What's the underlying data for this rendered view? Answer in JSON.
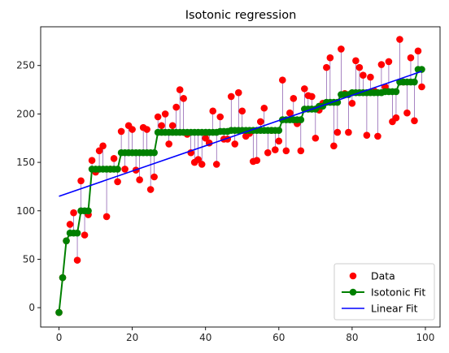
{
  "chart_data": {
    "type": "scatter",
    "title": "Isotonic regression",
    "xlabel": "",
    "ylabel": "",
    "xlim": [
      -5,
      104
    ],
    "ylim": [
      -20,
      290
    ],
    "xticks": [
      0,
      20,
      40,
      60,
      80,
      100
    ],
    "yticks": [
      0,
      50,
      100,
      150,
      200,
      250
    ],
    "grid": false,
    "legend_position": "lower-right",
    "colors": {
      "data": "#ff0000",
      "isotonic": "#008000",
      "linear": "#0000ff",
      "residual": "#4b0082"
    },
    "series": [
      {
        "name": "Data",
        "style": "markers",
        "x": [
          0,
          1,
          2,
          3,
          4,
          5,
          6,
          7,
          8,
          9,
          10,
          11,
          12,
          13,
          14,
          15,
          16,
          17,
          18,
          19,
          20,
          21,
          22,
          23,
          24,
          25,
          26,
          27,
          28,
          29,
          30,
          31,
          32,
          33,
          34,
          35,
          36,
          37,
          38,
          39,
          40,
          41,
          42,
          43,
          44,
          45,
          46,
          47,
          48,
          49,
          50,
          51,
          52,
          53,
          54,
          55,
          56,
          57,
          58,
          59,
          60,
          61,
          62,
          63,
          64,
          65,
          66,
          67,
          68,
          69,
          70,
          71,
          72,
          73,
          74,
          75,
          76,
          77,
          78,
          79,
          80,
          81,
          82,
          83,
          84,
          85,
          86,
          87,
          88,
          89,
          90,
          91,
          92,
          93,
          94,
          95,
          96,
          97,
          98,
          99
        ],
        "y": [
          -5,
          31,
          69,
          86,
          98,
          49,
          131,
          75,
          96,
          152,
          140,
          162,
          167,
          94,
          143,
          154,
          130,
          182,
          143,
          188,
          184,
          142,
          132,
          186,
          184,
          122,
          135,
          197,
          188,
          200,
          169,
          188,
          207,
          225,
          216,
          179,
          160,
          150,
          153,
          148,
          175,
          170,
          203,
          148,
          197,
          174,
          174,
          218,
          169,
          222,
          203,
          177,
          180,
          151,
          152,
          192,
          206,
          160,
          183,
          163,
          172,
          235,
          162,
          201,
          216,
          190,
          162,
          226,
          219,
          218,
          175,
          204,
          211,
          248,
          258,
          167,
          181,
          267,
          221,
          181,
          211,
          255,
          248,
          240,
          178,
          238,
          224,
          177,
          251,
          228,
          254,
          192,
          196,
          277,
          233,
          201,
          258,
          193,
          265,
          228
        ]
      },
      {
        "name": "Isotonic Fit",
        "style": "line-markers",
        "x": [
          0,
          1,
          2,
          3,
          4,
          5,
          6,
          7,
          8,
          9,
          10,
          11,
          12,
          13,
          14,
          15,
          16,
          17,
          18,
          19,
          20,
          21,
          22,
          23,
          24,
          25,
          26,
          27,
          28,
          29,
          30,
          31,
          32,
          33,
          34,
          35,
          36,
          37,
          38,
          39,
          40,
          41,
          42,
          43,
          44,
          45,
          46,
          47,
          48,
          49,
          50,
          51,
          52,
          53,
          54,
          55,
          56,
          57,
          58,
          59,
          60,
          61,
          62,
          63,
          64,
          65,
          66,
          67,
          68,
          69,
          70,
          71,
          72,
          73,
          74,
          75,
          76,
          77,
          78,
          79,
          80,
          81,
          82,
          83,
          84,
          85,
          86,
          87,
          88,
          89,
          90,
          91,
          92,
          93,
          94,
          95,
          96,
          97,
          98,
          99
        ],
        "y": [
          -5,
          31,
          69,
          77,
          77,
          77,
          100,
          100,
          100,
          143,
          143,
          143,
          143,
          143,
          143,
          143,
          143,
          160,
          160,
          160,
          160,
          160,
          160,
          160,
          160,
          160,
          160,
          181,
          181,
          181,
          181,
          181,
          181,
          181,
          181,
          181,
          181,
          181,
          181,
          181,
          181,
          181,
          181,
          181,
          182,
          182,
          182,
          183,
          183,
          183,
          183,
          183,
          183,
          183,
          183,
          183,
          183,
          183,
          183,
          183,
          183,
          194,
          194,
          194,
          194,
          194,
          194,
          205,
          205,
          205,
          205,
          208,
          208,
          212,
          212,
          212,
          212,
          220,
          220,
          220,
          222,
          222,
          222,
          222,
          222,
          222,
          222,
          222,
          222,
          223,
          223,
          223,
          223,
          233,
          233,
          233,
          233,
          233,
          246,
          246
        ]
      },
      {
        "name": "Linear Fit",
        "style": "line",
        "x": [
          0,
          99
        ],
        "y": [
          115,
          244
        ]
      }
    ]
  }
}
